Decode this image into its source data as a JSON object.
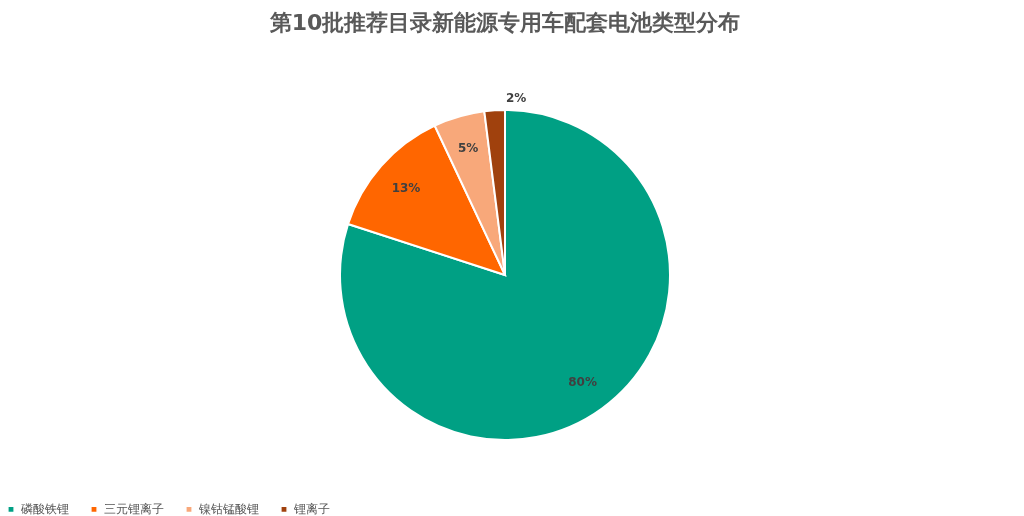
{
  "chart_data": {
    "type": "pie",
    "title": "第10批推荐目录新能源专用车配套电池类型分布",
    "categories": [
      "磷酸铁锂",
      "三元锂离子",
      "镍钴锰酸锂",
      "锂离子"
    ],
    "values": [
      80,
      13,
      5,
      2
    ],
    "colors": [
      "#00a084",
      "#ff6600",
      "#f8a87a",
      "#a0410d"
    ],
    "value_labels": [
      "80%",
      "13%",
      "5%",
      "2%"
    ],
    "legend": "bottom"
  }
}
